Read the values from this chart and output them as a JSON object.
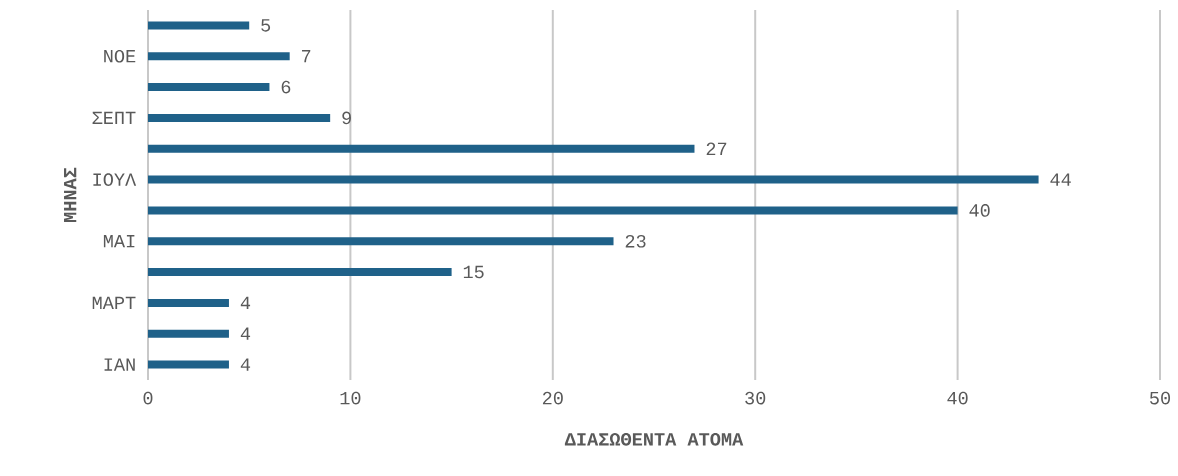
{
  "chart_data": {
    "type": "bar",
    "orientation": "horizontal",
    "xlabel": "ΔΙΑΣΩΘΕΝΤΑ ΑΤΟΜΑ",
    "ylabel": "ΜΗΝΑΣ",
    "categories": [
      null,
      "ΝΟΕ",
      null,
      "ΣΕΠΤ",
      null,
      "ΙΟΥΛ",
      null,
      "ΜΑΙ",
      null,
      "ΜΑΡΤ",
      null,
      "ΙΑΝ"
    ],
    "values": [
      5,
      7,
      6,
      9,
      27,
      44,
      40,
      23,
      15,
      4,
      4,
      4
    ],
    "color": "#1f6189",
    "xlim": [
      0,
      50
    ],
    "xticks": [
      0,
      10,
      20,
      30,
      40,
      50
    ],
    "grid": "x",
    "data_labels": true
  }
}
